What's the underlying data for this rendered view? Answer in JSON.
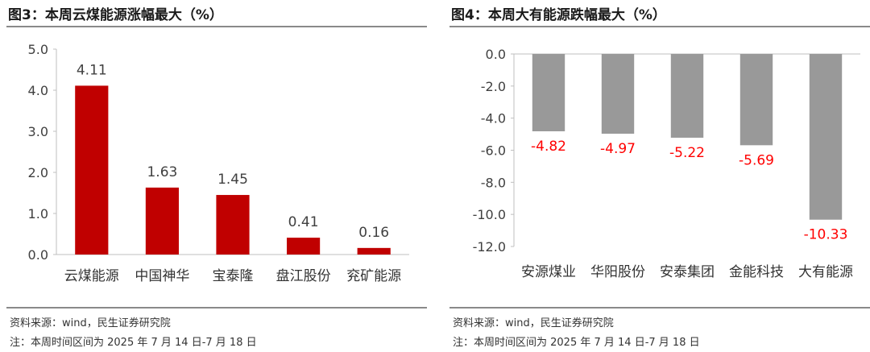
{
  "left_panel": {
    "title": "图3：本周云煤能源涨幅最大（%）",
    "source": "资料来源：wind，民生证券研究院",
    "note": "注：本周时间区间为 2025 年 7 月 14 日-7 月 18 日"
  },
  "right_panel": {
    "title": "图4：本周大有能源跌幅最大（%）",
    "source": "资料来源：wind，民生证券研究院",
    "note": "注：本周时间区间为 2025 年 7 月 14 日-7 月 18 日"
  },
  "colors": {
    "gain_bar": "#c00000",
    "loss_bar": "#999999",
    "loss_label": "#ff0000",
    "axis": "#bfbfbf",
    "text": "#404040"
  },
  "chart_data": [
    {
      "type": "bar",
      "categories": [
        "云煤能源",
        "中国神华",
        "宝泰隆",
        "盘江股份",
        "兖矿能源"
      ],
      "values": [
        4.11,
        1.63,
        1.45,
        0.41,
        0.16
      ],
      "data_labels": [
        "4.11",
        "1.63",
        "1.45",
        "0.41",
        "0.16"
      ],
      "ylim": [
        0,
        5
      ],
      "yticks": [
        0,
        1,
        2,
        3,
        4,
        5
      ],
      "ytick_labels": [
        "0.0",
        "1.0",
        "2.0",
        "3.0",
        "4.0",
        "5.0"
      ],
      "grid": false,
      "xlabel": "",
      "ylabel": ""
    },
    {
      "type": "bar",
      "categories": [
        "安源煤业",
        "华阳股份",
        "安泰集团",
        "金能科技",
        "大有能源"
      ],
      "values": [
        -4.82,
        -4.97,
        -5.22,
        -5.69,
        -10.33
      ],
      "data_labels": [
        "-4.82",
        "-4.97",
        "-5.22",
        "-5.69",
        "-10.33"
      ],
      "ylim": [
        -12,
        0
      ],
      "yticks": [
        0,
        -2,
        -4,
        -6,
        -8,
        -10,
        -12
      ],
      "ytick_labels": [
        "0.0",
        "-2.0",
        "-4.0",
        "-6.0",
        "-8.0",
        "-10.0",
        "-12.0"
      ],
      "grid": false,
      "xlabel": "",
      "ylabel": ""
    }
  ]
}
